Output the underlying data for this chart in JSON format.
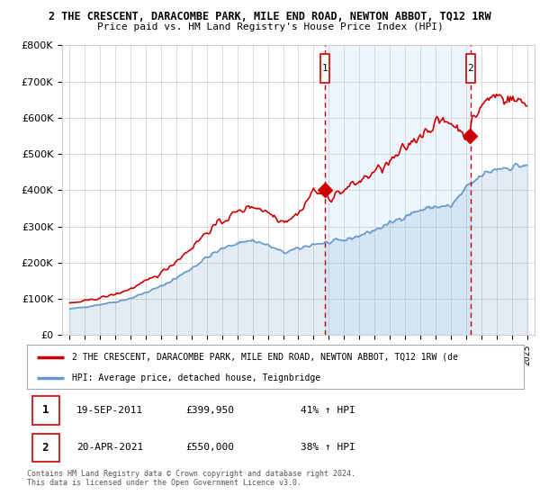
{
  "title1": "2 THE CRESCENT, DARACOMBE PARK, MILE END ROAD, NEWTON ABBOT, TQ12 1RW",
  "title2": "Price paid vs. HM Land Registry's House Price Index (HPI)",
  "ylim": [
    0,
    800000
  ],
  "yticks": [
    0,
    100000,
    200000,
    300000,
    400000,
    500000,
    600000,
    700000,
    800000
  ],
  "sale1_x": 2011.72,
  "sale1_price": 399950,
  "sale2_x": 2021.29,
  "sale2_price": 550000,
  "property_color": "#cc0000",
  "hpi_color": "#6699cc",
  "hpi_fill_color": "#ddeeff",
  "shade_color": "#ddeeff",
  "legend_property": "2 THE CRESCENT, DARACOMBE PARK, MILE END ROAD, NEWTON ABBOT, TQ12 1RW (de",
  "legend_hpi": "HPI: Average price, detached house, Teignbridge",
  "table_rows": [
    {
      "num": "1",
      "date": "19-SEP-2011",
      "price": "£399,950",
      "change": "41% ↑ HPI"
    },
    {
      "num": "2",
      "date": "20-APR-2021",
      "price": "£550,000",
      "change": "38% ↑ HPI"
    }
  ],
  "footnote": "Contains HM Land Registry data © Crown copyright and database right 2024.\nThis data is licensed under the Open Government Licence v3.0.",
  "background_color": "#ffffff",
  "grid_color": "#cccccc"
}
